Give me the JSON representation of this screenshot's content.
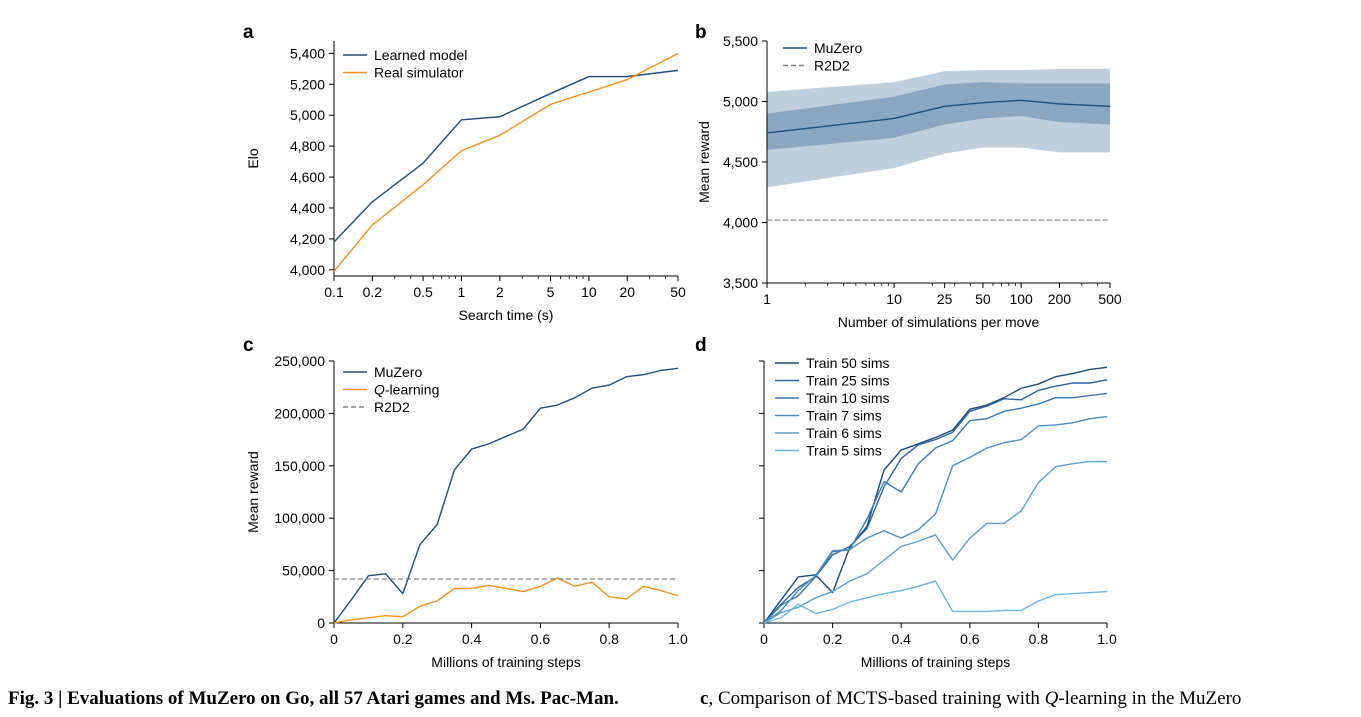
{
  "figure": {
    "caption_left": "Fig. 3 | Evaluations of MuZero on Go, all 57 Atari games and Ms. Pac-Man.",
    "caption_right_letter": "c",
    "caption_right_text": ", Comparison of MCTS-based training with ",
    "caption_right_q": "Q",
    "caption_right_tail": "-learning in the MuZero"
  },
  "colors": {
    "dark_blue": "#1f4e79",
    "orange": "#f5911e",
    "gray_dashed": "#808080",
    "band_outer": "#bfcfde",
    "band_inner": "#8aa6c1"
  },
  "chart_data": [
    {
      "panel": "a",
      "type": "line",
      "xscale": "log",
      "xlabel": "Search time (s)",
      "ylabel": "Elo",
      "xlim": [
        0.1,
        50
      ],
      "ylim": [
        3960,
        5480
      ],
      "xticks": [
        0.1,
        0.2,
        0.5,
        1,
        2,
        5,
        10,
        20,
        50
      ],
      "xticklabels": [
        "0.1",
        "0.2",
        "0.5",
        "1",
        "2",
        "5",
        "10",
        "20",
        "50"
      ],
      "yticks": [
        4000,
        4200,
        4400,
        4600,
        4800,
        5000,
        5200,
        5400
      ],
      "yticklabels": [
        "4,000",
        "4,200",
        "4,400",
        "4,600",
        "4,800",
        "5,000",
        "5,200",
        "5,400"
      ],
      "legend_position": "top-left",
      "series": [
        {
          "name": "Learned model",
          "color": "#1f4e79",
          "x": [
            0.1,
            0.2,
            0.5,
            1,
            2,
            5,
            10,
            20,
            50
          ],
          "y": [
            4180,
            4440,
            4690,
            4970,
            4990,
            5140,
            5250,
            5250,
            5290
          ]
        },
        {
          "name": "Real simulator",
          "color": "#f5911e",
          "x": [
            0.1,
            0.2,
            0.5,
            1,
            2,
            5,
            10,
            20,
            50
          ],
          "y": [
            3990,
            4290,
            4550,
            4770,
            4870,
            5070,
            5150,
            5230,
            5400
          ]
        }
      ]
    },
    {
      "panel": "b",
      "type": "line",
      "xscale": "log",
      "xlabel": "Number of simulations per move",
      "ylabel": "Mean reward",
      "xlim": [
        1,
        500
      ],
      "ylim": [
        3500,
        5500
      ],
      "xticks": [
        1,
        10,
        25,
        50,
        100,
        200,
        500
      ],
      "xticklabels": [
        "1",
        "10",
        "25",
        "50",
        "100",
        "200",
        "500"
      ],
      "yticks": [
        3500,
        4000,
        4500,
        5000,
        5500
      ],
      "yticklabels": [
        "3,500",
        "4,000",
        "4,500",
        "5,000",
        "5,500"
      ],
      "legend_position": "top-left",
      "series": [
        {
          "name": "MuZero",
          "color": "#1f4e79",
          "x": [
            1,
            10,
            25,
            50,
            100,
            200,
            500
          ],
          "y": [
            4740,
            4860,
            4960,
            4990,
            5010,
            4980,
            4960
          ],
          "band_inner_low": [
            4600,
            4700,
            4810,
            4860,
            4880,
            4830,
            4810
          ],
          "band_inner_high": [
            4900,
            5040,
            5140,
            5160,
            5150,
            5150,
            5150
          ],
          "band_outer_low": [
            4290,
            4450,
            4570,
            4620,
            4620,
            4580,
            4580
          ],
          "band_outer_high": [
            5080,
            5160,
            5250,
            5260,
            5260,
            5270,
            5270
          ]
        },
        {
          "name": "R2D2",
          "color": "#808080",
          "dashed": true,
          "x": [
            1,
            500
          ],
          "y": [
            4020,
            4020
          ]
        }
      ]
    },
    {
      "panel": "c",
      "type": "line",
      "xlabel": "Millions of training steps",
      "ylabel": "Mean reward",
      "xlim": [
        0,
        1.0
      ],
      "ylim": [
        0,
        250000
      ],
      "xticks": [
        0,
        0.2,
        0.4,
        0.6,
        0.8,
        1.0
      ],
      "xticklabels": [
        "0",
        "0.2",
        "0.4",
        "0.6",
        "0.8",
        "1.0"
      ],
      "yticks": [
        0,
        50000,
        100000,
        150000,
        200000,
        250000
      ],
      "yticklabels": [
        "0",
        "50,000",
        "100,000",
        "150,000",
        "200,000",
        "250,000"
      ],
      "legend_position": "top-left",
      "series": [
        {
          "name": "MuZero",
          "color": "#1f4e79",
          "x": [
            0,
            0.05,
            0.1,
            0.15,
            0.2,
            0.25,
            0.3,
            0.35,
            0.4,
            0.45,
            0.5,
            0.55,
            0.6,
            0.65,
            0.7,
            0.75,
            0.8,
            0.85,
            0.9,
            0.95,
            1.0
          ],
          "y": [
            0,
            22000,
            45000,
            47000,
            28000,
            75000,
            94000,
            146000,
            166000,
            171000,
            178000,
            185000,
            205000,
            208000,
            215000,
            224000,
            227000,
            235000,
            237000,
            241000,
            243000
          ]
        },
        {
          "name": "Q-learning",
          "name_italic": "Q",
          "name_rest": "-learning",
          "color": "#f5911e",
          "x": [
            0,
            0.05,
            0.1,
            0.15,
            0.2,
            0.25,
            0.3,
            0.35,
            0.4,
            0.45,
            0.5,
            0.55,
            0.6,
            0.65,
            0.7,
            0.75,
            0.8,
            0.85,
            0.9,
            0.95,
            1.0
          ],
          "y": [
            0,
            3000,
            5000,
            7000,
            6000,
            16000,
            21000,
            33000,
            33000,
            36000,
            33000,
            30000,
            35000,
            43000,
            35000,
            39000,
            25000,
            23000,
            35000,
            31000,
            26000
          ]
        },
        {
          "name": "R2D2",
          "color": "#808080",
          "dashed": true,
          "x": [
            0,
            1.0
          ],
          "y": [
            42000,
            42000
          ]
        }
      ]
    },
    {
      "panel": "d",
      "type": "line",
      "xlabel": "Millions of training steps",
      "ylabel": "",
      "xlim": [
        0,
        1.0
      ],
      "ylim": [
        0,
        250000
      ],
      "xticks": [
        0,
        0.2,
        0.4,
        0.6,
        0.8,
        1.0
      ],
      "xticklabels": [
        "0",
        "0.2",
        "0.4",
        "0.6",
        "0.8",
        "1.0"
      ],
      "yticks": [
        0,
        50000,
        100000,
        150000,
        200000,
        250000
      ],
      "yticklabels": [
        "",
        "",
        "",
        "",
        "",
        ""
      ],
      "legend_position": "top-left",
      "series": [
        {
          "name": "Train 50 sims",
          "color": "#1a4a7a",
          "x": [
            0,
            0.05,
            0.1,
            0.15,
            0.2,
            0.25,
            0.3,
            0.35,
            0.4,
            0.45,
            0.5,
            0.55,
            0.6,
            0.65,
            0.7,
            0.75,
            0.8,
            0.85,
            0.9,
            0.95,
            1.0
          ],
          "y": [
            0,
            22000,
            44000,
            46000,
            29000,
            72000,
            92000,
            146000,
            165000,
            171000,
            177000,
            184000,
            204000,
            208000,
            215000,
            224000,
            228000,
            235000,
            238000,
            242000,
            244000
          ]
        },
        {
          "name": "Train 25 sims",
          "color": "#2a64a0",
          "x": [
            0,
            0.05,
            0.1,
            0.15,
            0.2,
            0.25,
            0.3,
            0.35,
            0.4,
            0.45,
            0.5,
            0.55,
            0.6,
            0.65,
            0.7,
            0.75,
            0.8,
            0.85,
            0.9,
            0.95,
            1.0
          ],
          "y": [
            0,
            18000,
            34000,
            44000,
            65000,
            73000,
            90000,
            130000,
            157000,
            170000,
            175000,
            182000,
            202000,
            207000,
            214000,
            213000,
            222000,
            226000,
            229000,
            229000,
            232000
          ]
        },
        {
          "name": "Train 10 sims",
          "color": "#3a78b5",
          "x": [
            0,
            0.05,
            0.1,
            0.15,
            0.2,
            0.25,
            0.3,
            0.35,
            0.4,
            0.45,
            0.5,
            0.55,
            0.6,
            0.65,
            0.7,
            0.75,
            0.8,
            0.85,
            0.9,
            0.95,
            1.0
          ],
          "y": [
            0,
            17000,
            26000,
            44000,
            68000,
            70000,
            99000,
            135000,
            125000,
            152000,
            167000,
            174000,
            193000,
            195000,
            202000,
            205000,
            209000,
            215000,
            215000,
            217000,
            219000
          ]
        },
        {
          "name": "Train 7 sims",
          "color": "#4a8dc6",
          "x": [
            0,
            0.05,
            0.1,
            0.15,
            0.2,
            0.25,
            0.3,
            0.35,
            0.4,
            0.45,
            0.5,
            0.55,
            0.6,
            0.65,
            0.7,
            0.75,
            0.8,
            0.85,
            0.9,
            0.95,
            1.0
          ],
          "y": [
            0,
            12000,
            31000,
            45000,
            69000,
            70000,
            81000,
            88000,
            81000,
            89000,
            104000,
            150000,
            158000,
            167000,
            172000,
            175000,
            188000,
            189000,
            191000,
            195000,
            197000
          ]
        },
        {
          "name": "Train 6 sims",
          "color": "#5a9fd4",
          "x": [
            0,
            0.05,
            0.1,
            0.15,
            0.2,
            0.25,
            0.3,
            0.35,
            0.4,
            0.45,
            0.5,
            0.55,
            0.6,
            0.65,
            0.7,
            0.75,
            0.8,
            0.85,
            0.9,
            0.95,
            1.0
          ],
          "y": [
            0,
            10000,
            15000,
            24000,
            30000,
            40000,
            47000,
            60000,
            73000,
            78000,
            84000,
            60000,
            81000,
            95000,
            95000,
            107000,
            134000,
            149000,
            152000,
            154000,
            154000
          ]
        },
        {
          "name": "Train 5 sims",
          "color": "#6cb4e4",
          "x": [
            0,
            0.05,
            0.1,
            0.15,
            0.2,
            0.25,
            0.3,
            0.35,
            0.4,
            0.45,
            0.5,
            0.55,
            0.6,
            0.65,
            0.7,
            0.75,
            0.8,
            0.85,
            0.9,
            0.95,
            1.0
          ],
          "y": [
            0,
            5000,
            18000,
            9000,
            13000,
            20000,
            24000,
            28000,
            31000,
            35000,
            40000,
            11000,
            11000,
            11000,
            12000,
            12000,
            21000,
            27000,
            28000,
            29000,
            30000
          ]
        }
      ]
    }
  ]
}
